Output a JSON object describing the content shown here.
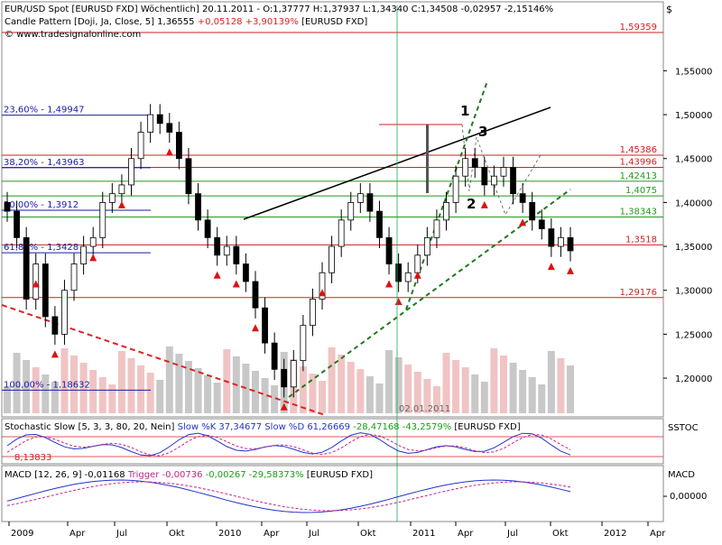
{
  "header": {
    "line1": "EUR/USD Spot [EURUSD FXD]  Wöchentlich] 20.11.2011 - O:1,37777 H:1,37937 L:1,34340 C:1,34508 -0,02957 -2,15146%",
    "line2_prefix": "Candle Pattern [Doji, Ja, Close, 5] 1,36555 ",
    "line2_change": "+0,05128 +3,90139%",
    "line2_suffix": " [EURUSD FXD]",
    "website": "www.tradesignalonline.com",
    "currency_symbol": "$"
  },
  "panels": {
    "stoch": {
      "label": "SSTOC",
      "header_prefix": "Stochastic Slow [5, 3, 3, 80, 20, Nein] ",
      "header_k": "Slow %K 37,34677",
      "header_d": " Slow %D 61,26669",
      "header_change": " -28,47168 -43,2579%",
      "header_suffix": " [EURUSD FXD]",
      "level_label": "8,13833"
    },
    "macd": {
      "label": "MACD",
      "header_prefix": "MACD [12, 26, 9] -0,01168 ",
      "header_trigger": "Trigger -0,00736",
      "header_change": " -0,00267 -29,58373%",
      "header_suffix": " [EURUSD FXD]",
      "tick": "0,00000"
    }
  },
  "date_annotation": "02.01.2011",
  "colors": {
    "up": "#14a014",
    "down": "#dc1414",
    "blue": "#2233cc",
    "black": "#000000",
    "resistance": "#cc2222",
    "support": "#229922",
    "fib": "#1a1aaa"
  },
  "chart_data": {
    "type": "candlestick",
    "y_range": [
      1.16,
      1.61
    ],
    "y_ticks": [
      "1,55000",
      "1,50000",
      "1,45000",
      "1,40000",
      "1,35000",
      "1,30000",
      "1,25000",
      "1,20000"
    ],
    "x_labels": [
      "2009",
      "Apr",
      "Jul",
      "Okt",
      "2010",
      "Apr",
      "Jul",
      "Okt",
      "2011",
      "Apr",
      "Jul",
      "Okt",
      "2012",
      "Apr"
    ],
    "horizontal_levels": [
      {
        "value": 1.59359,
        "label": "1,59359",
        "color": "red"
      },
      {
        "value": 1.45386,
        "label": "1,45386",
        "color": "red"
      },
      {
        "value": 1.43996,
        "label": "1,43996",
        "color": "red"
      },
      {
        "value": 1.42413,
        "label": "1,42413",
        "color": "green"
      },
      {
        "value": 1.4075,
        "label": "1,4075",
        "color": "green"
      },
      {
        "value": 1.38343,
        "label": "1,38343",
        "color": "green"
      },
      {
        "value": 1.3518,
        "label": "1,3518",
        "color": "red"
      },
      {
        "value": 1.29176,
        "label": "1,29176",
        "color": "red"
      }
    ],
    "fibonacci": [
      {
        "value": 1.49947,
        "label": "23,60% - 1,49947"
      },
      {
        "value": 1.43963,
        "label": "38,20% - 1,43963"
      },
      {
        "value": 1.3912,
        "label": "50,00% - 1,3912"
      },
      {
        "value": 1.3428,
        "label": "61,80% - 1,3428"
      },
      {
        "value": 1.18632,
        "label": "100,00% - 1,18632"
      }
    ],
    "wave_labels": [
      "1",
      "2",
      "3"
    ],
    "closes": [
      1.39,
      1.36,
      1.29,
      1.33,
      1.27,
      1.25,
      1.3,
      1.33,
      1.35,
      1.36,
      1.4,
      1.41,
      1.42,
      1.45,
      1.48,
      1.5,
      1.49,
      1.48,
      1.45,
      1.41,
      1.38,
      1.36,
      1.34,
      1.35,
      1.33,
      1.31,
      1.28,
      1.24,
      1.21,
      1.19,
      1.22,
      1.26,
      1.29,
      1.32,
      1.35,
      1.38,
      1.4,
      1.41,
      1.39,
      1.36,
      1.33,
      1.31,
      1.32,
      1.34,
      1.36,
      1.38,
      1.4,
      1.43,
      1.45,
      1.44,
      1.42,
      1.43,
      1.44,
      1.41,
      1.4,
      1.38,
      1.37,
      1.35,
      1.36,
      1.345
    ]
  }
}
